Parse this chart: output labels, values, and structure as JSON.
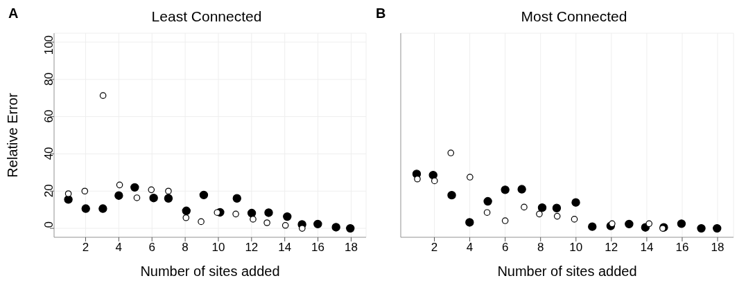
{
  "chart_data": [
    {
      "type": "scatter",
      "title": "Least Connected",
      "annotations": [
        "A"
      ],
      "xlabel": "Number of sites added",
      "ylabel": "Relative Error",
      "xlim": [
        0.1,
        18.9
      ],
      "ylim": [
        -4.8,
        104.8
      ],
      "xticks": [
        2,
        4,
        6,
        8,
        10,
        12,
        14,
        16,
        18
      ],
      "yticks": [
        0,
        20,
        40,
        60,
        80,
        100
      ],
      "grid": true,
      "marker": "circle",
      "series": [
        {
          "color": "#000000",
          "x": [
            0.96,
            2.01,
            3.04,
            4.0,
            4.96,
            6.1,
            6.99,
            8.07,
            9.12,
            10.1,
            11.12,
            12.01,
            13.03,
            14.15,
            15.04,
            15.99,
            17.09,
            17.95
          ],
          "values": [
            15.5,
            10.6,
            10.6,
            17.6,
            22.0,
            16.3,
            16.1,
            9.4,
            17.9,
            8.6,
            16.1,
            8.2,
            8.4,
            6.3,
            2.1,
            2.3,
            0.6,
            0
          ]
        },
        {
          "color": "#ffffff",
          "x": [
            0.96,
            1.95,
            3.05,
            4.05,
            5.09,
            5.96,
            6.99,
            8.05,
            8.96,
            9.93,
            11.05,
            12.09,
            12.93,
            14.04,
            15.05
          ],
          "values": [
            18.6,
            20.0,
            71.3,
            23.3,
            16.4,
            20.7,
            20.0,
            5.7,
            3.6,
            8.5,
            7.7,
            4.9,
            3.0,
            1.6,
            0.0
          ]
        }
      ]
    },
    {
      "type": "scatter",
      "title": "Most Connected",
      "annotations": [
        "B"
      ],
      "xlabel": "Number of sites added",
      "xlim": [
        0.1,
        18.9
      ],
      "ylim": [
        -4.8,
        104.8
      ],
      "xticks": [
        2,
        4,
        6,
        8,
        10,
        12,
        14,
        16,
        18
      ],
      "yticks": [
        0,
        20,
        40,
        60,
        80,
        100
      ],
      "tick_labels": "x",
      "grid": true,
      "marker": "circle",
      "series": [
        {
          "color": "#000000",
          "x": [
            1.0,
            1.93,
            2.98,
            3.99,
            5.02,
            6.0,
            6.94,
            8.09,
            8.91,
            9.99,
            10.92,
            11.96,
            13.0,
            13.92,
            14.96,
            15.96,
            17.08,
            17.97
          ],
          "values": [
            29.2,
            28.6,
            17.8,
            3.2,
            14.5,
            20.7,
            21.0,
            11.1,
            10.9,
            13.9,
            0.9,
            1.3,
            2.3,
            0.5,
            0.5,
            2.5,
            0,
            0
          ]
        },
        {
          "color": "#ffffff",
          "x": [
            1.04,
            2.01,
            2.93,
            4.01,
            4.98,
            6.0,
            7.07,
            7.93,
            8.94,
            9.91,
            12.04,
            14.13,
            14.9
          ],
          "values": [
            26.5,
            25.5,
            40.5,
            27.5,
            8.5,
            4.1,
            11.4,
            7.7,
            6.5,
            4.9,
            2.5,
            2.5,
            0
          ]
        }
      ]
    }
  ]
}
